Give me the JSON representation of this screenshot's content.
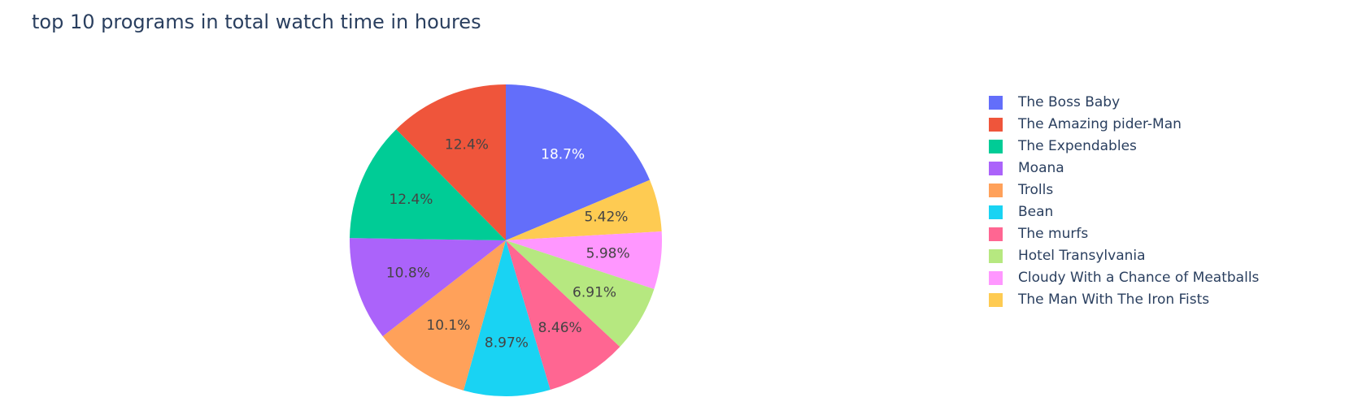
{
  "chart_data": {
    "type": "pie",
    "title": "top 10 programs in total watch time in houres",
    "legend_position": "right",
    "direction": "clockwise",
    "slices": [
      {
        "label": "The Boss Baby",
        "value": 18.7,
        "text": "18.7%",
        "color": "#636efa"
      },
      {
        "label": "The Man With The Iron Fists",
        "value": 5.42,
        "text": "5.42%",
        "color": "#fecb52"
      },
      {
        "label": "Cloudy With a Chance of Meatballs",
        "value": 5.98,
        "text": "5.98%",
        "color": "#ff97ff"
      },
      {
        "label": "Hotel Transylvania",
        "value": 6.91,
        "text": "6.91%",
        "color": "#b6e880"
      },
      {
        "label": "The murfs",
        "value": 8.46,
        "text": "8.46%",
        "color": "#ff6692"
      },
      {
        "label": "Bean",
        "value": 8.97,
        "text": "8.97%",
        "color": "#19d3f3"
      },
      {
        "label": "Trolls",
        "value": 10.1,
        "text": "10.1%",
        "color": "#ffa15a"
      },
      {
        "label": "Moana",
        "value": 10.8,
        "text": "10.8%",
        "color": "#ab63fa"
      },
      {
        "label": "The Expendables",
        "value": 12.4,
        "text": "12.4%",
        "color": "#00cc96"
      },
      {
        "label": "The Amazing pider-Man",
        "value": 12.4,
        "text": "12.4%",
        "color": "#ef553b"
      }
    ],
    "legend": [
      {
        "label": "The Boss Baby",
        "color": "#636efa"
      },
      {
        "label": "The Amazing pider-Man",
        "color": "#ef553b"
      },
      {
        "label": "The Expendables",
        "color": "#00cc96"
      },
      {
        "label": "Moana",
        "color": "#ab63fa"
      },
      {
        "label": "Trolls",
        "color": "#ffa15a"
      },
      {
        "label": "Bean",
        "color": "#19d3f3"
      },
      {
        "label": "The murfs",
        "color": "#ff6692"
      },
      {
        "label": "Hotel Transylvania",
        "color": "#b6e880"
      },
      {
        "label": "Cloudy With a Chance of Meatballs",
        "color": "#ff97ff"
      },
      {
        "label": "The Man With The Iron Fists",
        "color": "#fecb52"
      }
    ]
  }
}
